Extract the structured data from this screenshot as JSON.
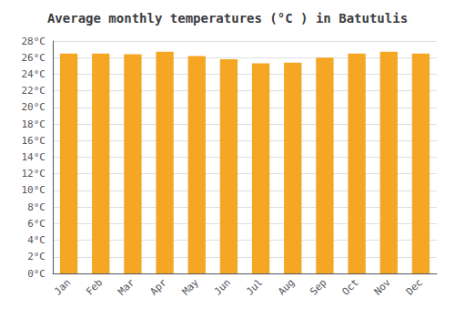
{
  "chart_data": {
    "type": "bar",
    "title": "Average monthly temperatures (°C ) in Batutulis",
    "categories": [
      "Jan",
      "Feb",
      "Mar",
      "Apr",
      "May",
      "Jun",
      "Jul",
      "Aug",
      "Sep",
      "Oct",
      "Nov",
      "Dec"
    ],
    "values": [
      26.5,
      26.5,
      26.4,
      26.7,
      26.2,
      25.8,
      25.3,
      25.4,
      26.0,
      26.5,
      26.7,
      26.5
    ],
    "color": "#F5A623",
    "ylim": [
      0,
      28
    ],
    "yticks": [
      {
        "value": 0,
        "label": "0°C"
      },
      {
        "value": 2,
        "label": "2°C"
      },
      {
        "value": 4,
        "label": "4°C"
      },
      {
        "value": 6,
        "label": "6°C"
      },
      {
        "value": 8,
        "label": "8°C"
      },
      {
        "value": 10,
        "label": "10°C"
      },
      {
        "value": 12,
        "label": "12°C"
      },
      {
        "value": 14,
        "label": "14°C"
      },
      {
        "value": 16,
        "label": "16°C"
      },
      {
        "value": 18,
        "label": "18°C"
      },
      {
        "value": 20,
        "label": "20°C"
      },
      {
        "value": 22,
        "label": "22°C"
      },
      {
        "value": 24,
        "label": "24°C"
      },
      {
        "value": 26,
        "label": "26°C"
      },
      {
        "value": 28,
        "label": "28°C"
      }
    ],
    "grid": true
  }
}
